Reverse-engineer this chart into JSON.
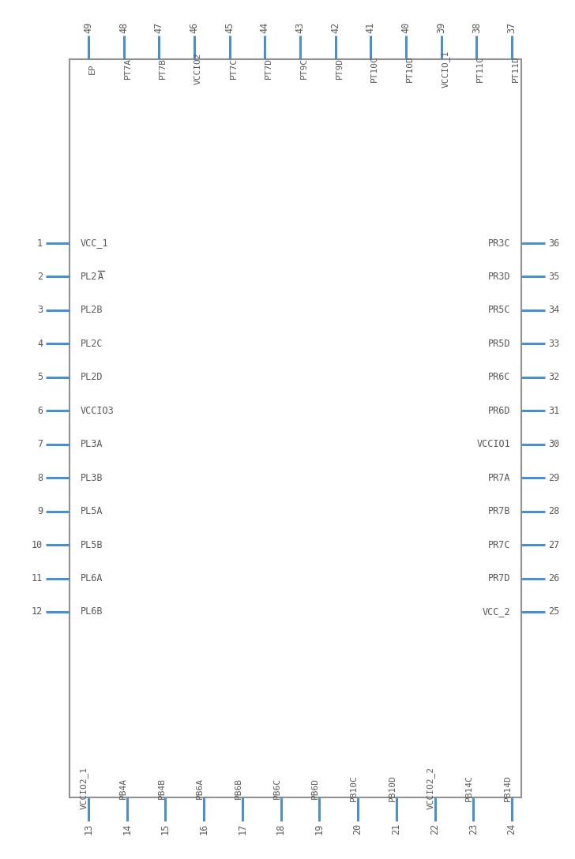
{
  "bg_color": "#ffffff",
  "box_color": "#919191",
  "pin_color": "#4a8fd4",
  "text_color": "#595959",
  "left_pins": [
    {
      "num": 1,
      "name": "VCC_1",
      "bar": false
    },
    {
      "num": 2,
      "name": "PL2A",
      "bar": true
    },
    {
      "num": 3,
      "name": "PL2B",
      "bar": false
    },
    {
      "num": 4,
      "name": "PL2C",
      "bar": false
    },
    {
      "num": 5,
      "name": "PL2D",
      "bar": false
    },
    {
      "num": 6,
      "name": "VCCIO3",
      "bar": false
    },
    {
      "num": 7,
      "name": "PL3A",
      "bar": false
    },
    {
      "num": 8,
      "name": "PL3B",
      "bar": false
    },
    {
      "num": 9,
      "name": "PL5A",
      "bar": false
    },
    {
      "num": 10,
      "name": "PL5B",
      "bar": false
    },
    {
      "num": 11,
      "name": "PL6A",
      "bar": false
    },
    {
      "num": 12,
      "name": "PL6B",
      "bar": false
    }
  ],
  "right_pins": [
    {
      "num": 36,
      "name": "PR3C"
    },
    {
      "num": 35,
      "name": "PR3D"
    },
    {
      "num": 34,
      "name": "PR5C"
    },
    {
      "num": 33,
      "name": "PR5D"
    },
    {
      "num": 32,
      "name": "PR6C"
    },
    {
      "num": 31,
      "name": "PR6D"
    },
    {
      "num": 30,
      "name": "VCCIO1"
    },
    {
      "num": 29,
      "name": "PR7A"
    },
    {
      "num": 28,
      "name": "PR7B"
    },
    {
      "num": 27,
      "name": "PR7C"
    },
    {
      "num": 26,
      "name": "PR7D"
    },
    {
      "num": 25,
      "name": "VCC_2"
    }
  ],
  "top_pins": [
    {
      "num": 49,
      "name": "EP"
    },
    {
      "num": 48,
      "name": "PT7A"
    },
    {
      "num": 47,
      "name": "PT7B"
    },
    {
      "num": 46,
      "name": "VCCIO2",
      "bar": false
    },
    {
      "num": 45,
      "name": "PT7C"
    },
    {
      "num": 44,
      "name": "PT7D"
    },
    {
      "num": 43,
      "name": "PT9C"
    },
    {
      "num": 42,
      "name": "PT9D"
    },
    {
      "num": 41,
      "name": "PT10C"
    },
    {
      "num": 40,
      "name": "PT10D"
    },
    {
      "num": 39,
      "name": "VCCIO_1"
    },
    {
      "num": 38,
      "name": "PT11C"
    },
    {
      "num": 37,
      "name": "PT11D"
    }
  ],
  "bottom_pins": [
    {
      "num": 13,
      "name": "VCCIO2_1"
    },
    {
      "num": 14,
      "name": "PB4A"
    },
    {
      "num": 15,
      "name": "PB4B"
    },
    {
      "num": 16,
      "name": "PB6A"
    },
    {
      "num": 17,
      "name": "PB6B"
    },
    {
      "num": 18,
      "name": "PB6C"
    },
    {
      "num": 19,
      "name": "PB6D"
    },
    {
      "num": 20,
      "name": "PB10C"
    },
    {
      "num": 21,
      "name": "PB10D"
    },
    {
      "num": 22,
      "name": "VCCIO2_2"
    },
    {
      "num": 23,
      "name": "PB14C"
    },
    {
      "num": 24,
      "name": "PB14D"
    }
  ]
}
